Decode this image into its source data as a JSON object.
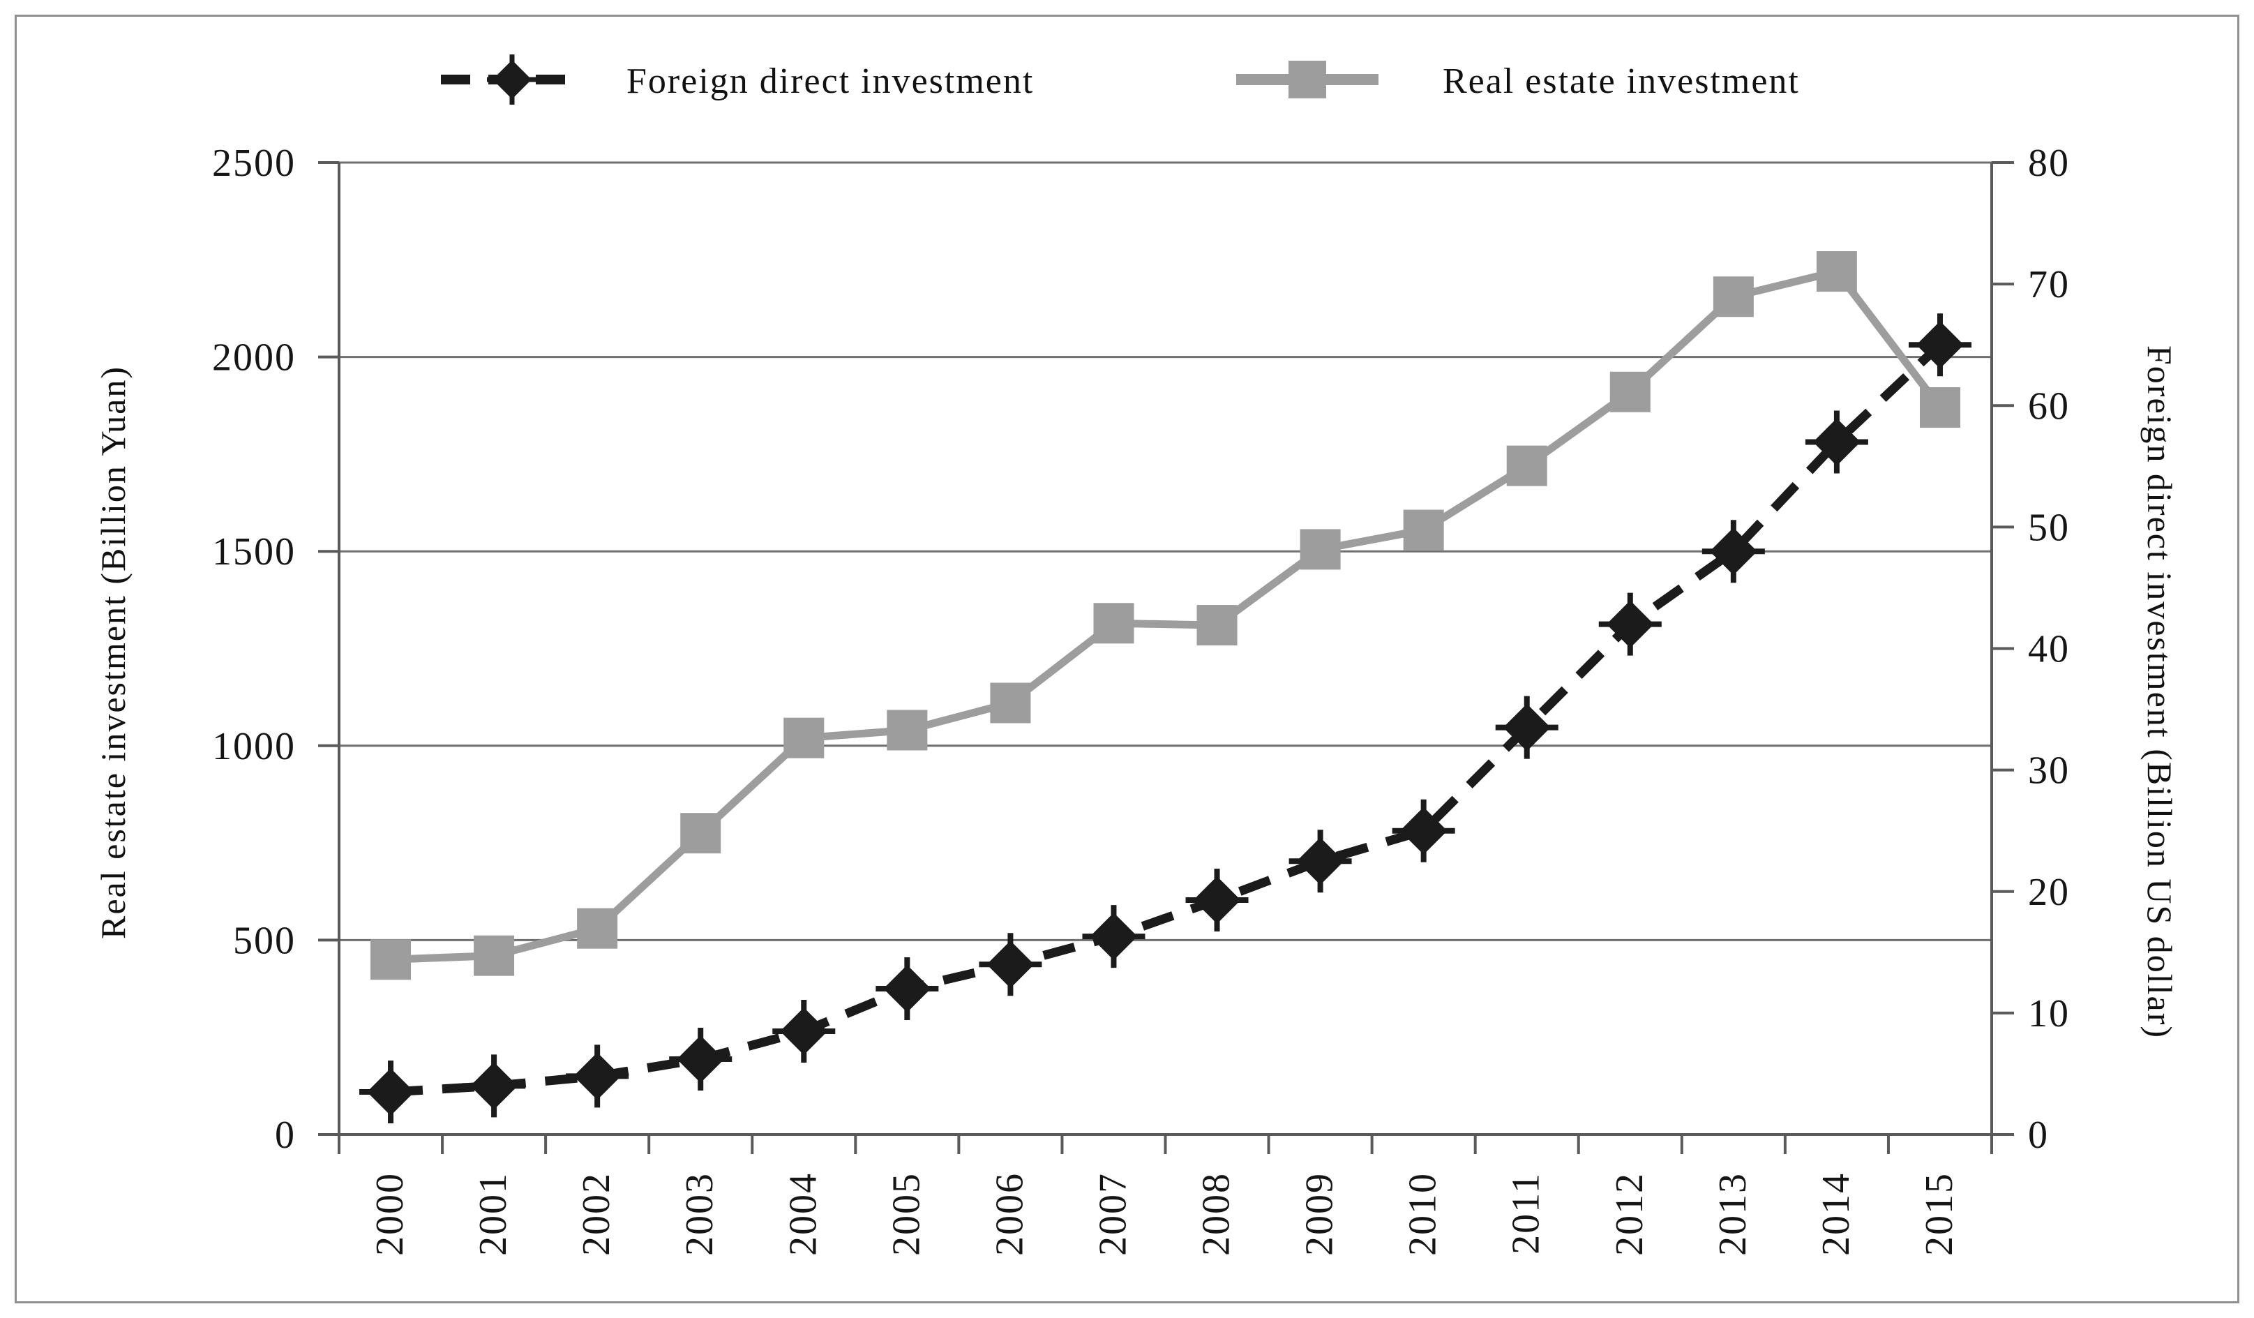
{
  "chart_data": {
    "type": "line",
    "title": "",
    "categories": [
      "2000",
      "2001",
      "2002",
      "2003",
      "2004",
      "2005",
      "2006",
      "2007",
      "2008",
      "2009",
      "2010",
      "2011",
      "2012",
      "2013",
      "2014",
      "2015"
    ],
    "series": [
      {
        "name": "Foreign direct investment",
        "axis": "right",
        "color": "#1b1b1b",
        "line_style": "dashed",
        "marker": "diamond",
        "values": [
          3.5,
          4,
          4.8,
          6.2,
          8.5,
          12,
          14,
          16.3,
          19.3,
          22.5,
          25,
          33.5,
          42,
          48,
          57,
          65
        ]
      },
      {
        "name": "Real estate investment",
        "axis": "left",
        "color": "#9d9d9d",
        "line_style": "solid",
        "marker": "square",
        "values": [
          450,
          460,
          530,
          775,
          1020,
          1040,
          1110,
          1315,
          1310,
          1505,
          1555,
          1720,
          1910,
          2155,
          2220,
          1870
        ]
      }
    ],
    "left_axis": {
      "label": "Real estate investment (Billion Yuan)",
      "min": 0,
      "max": 2500,
      "step": 500,
      "tick_labels": [
        "0",
        "500",
        "1000",
        "1500",
        "2000",
        "2500"
      ]
    },
    "right_axis": {
      "label": "Foreign direct investment (Billion US dollar)",
      "min": 0,
      "max": 80,
      "step": 10,
      "tick_labels": [
        "0",
        "10",
        "20",
        "30",
        "40",
        "50",
        "60",
        "70",
        "80"
      ]
    },
    "grid": "horizontal",
    "legend_position": "top"
  }
}
